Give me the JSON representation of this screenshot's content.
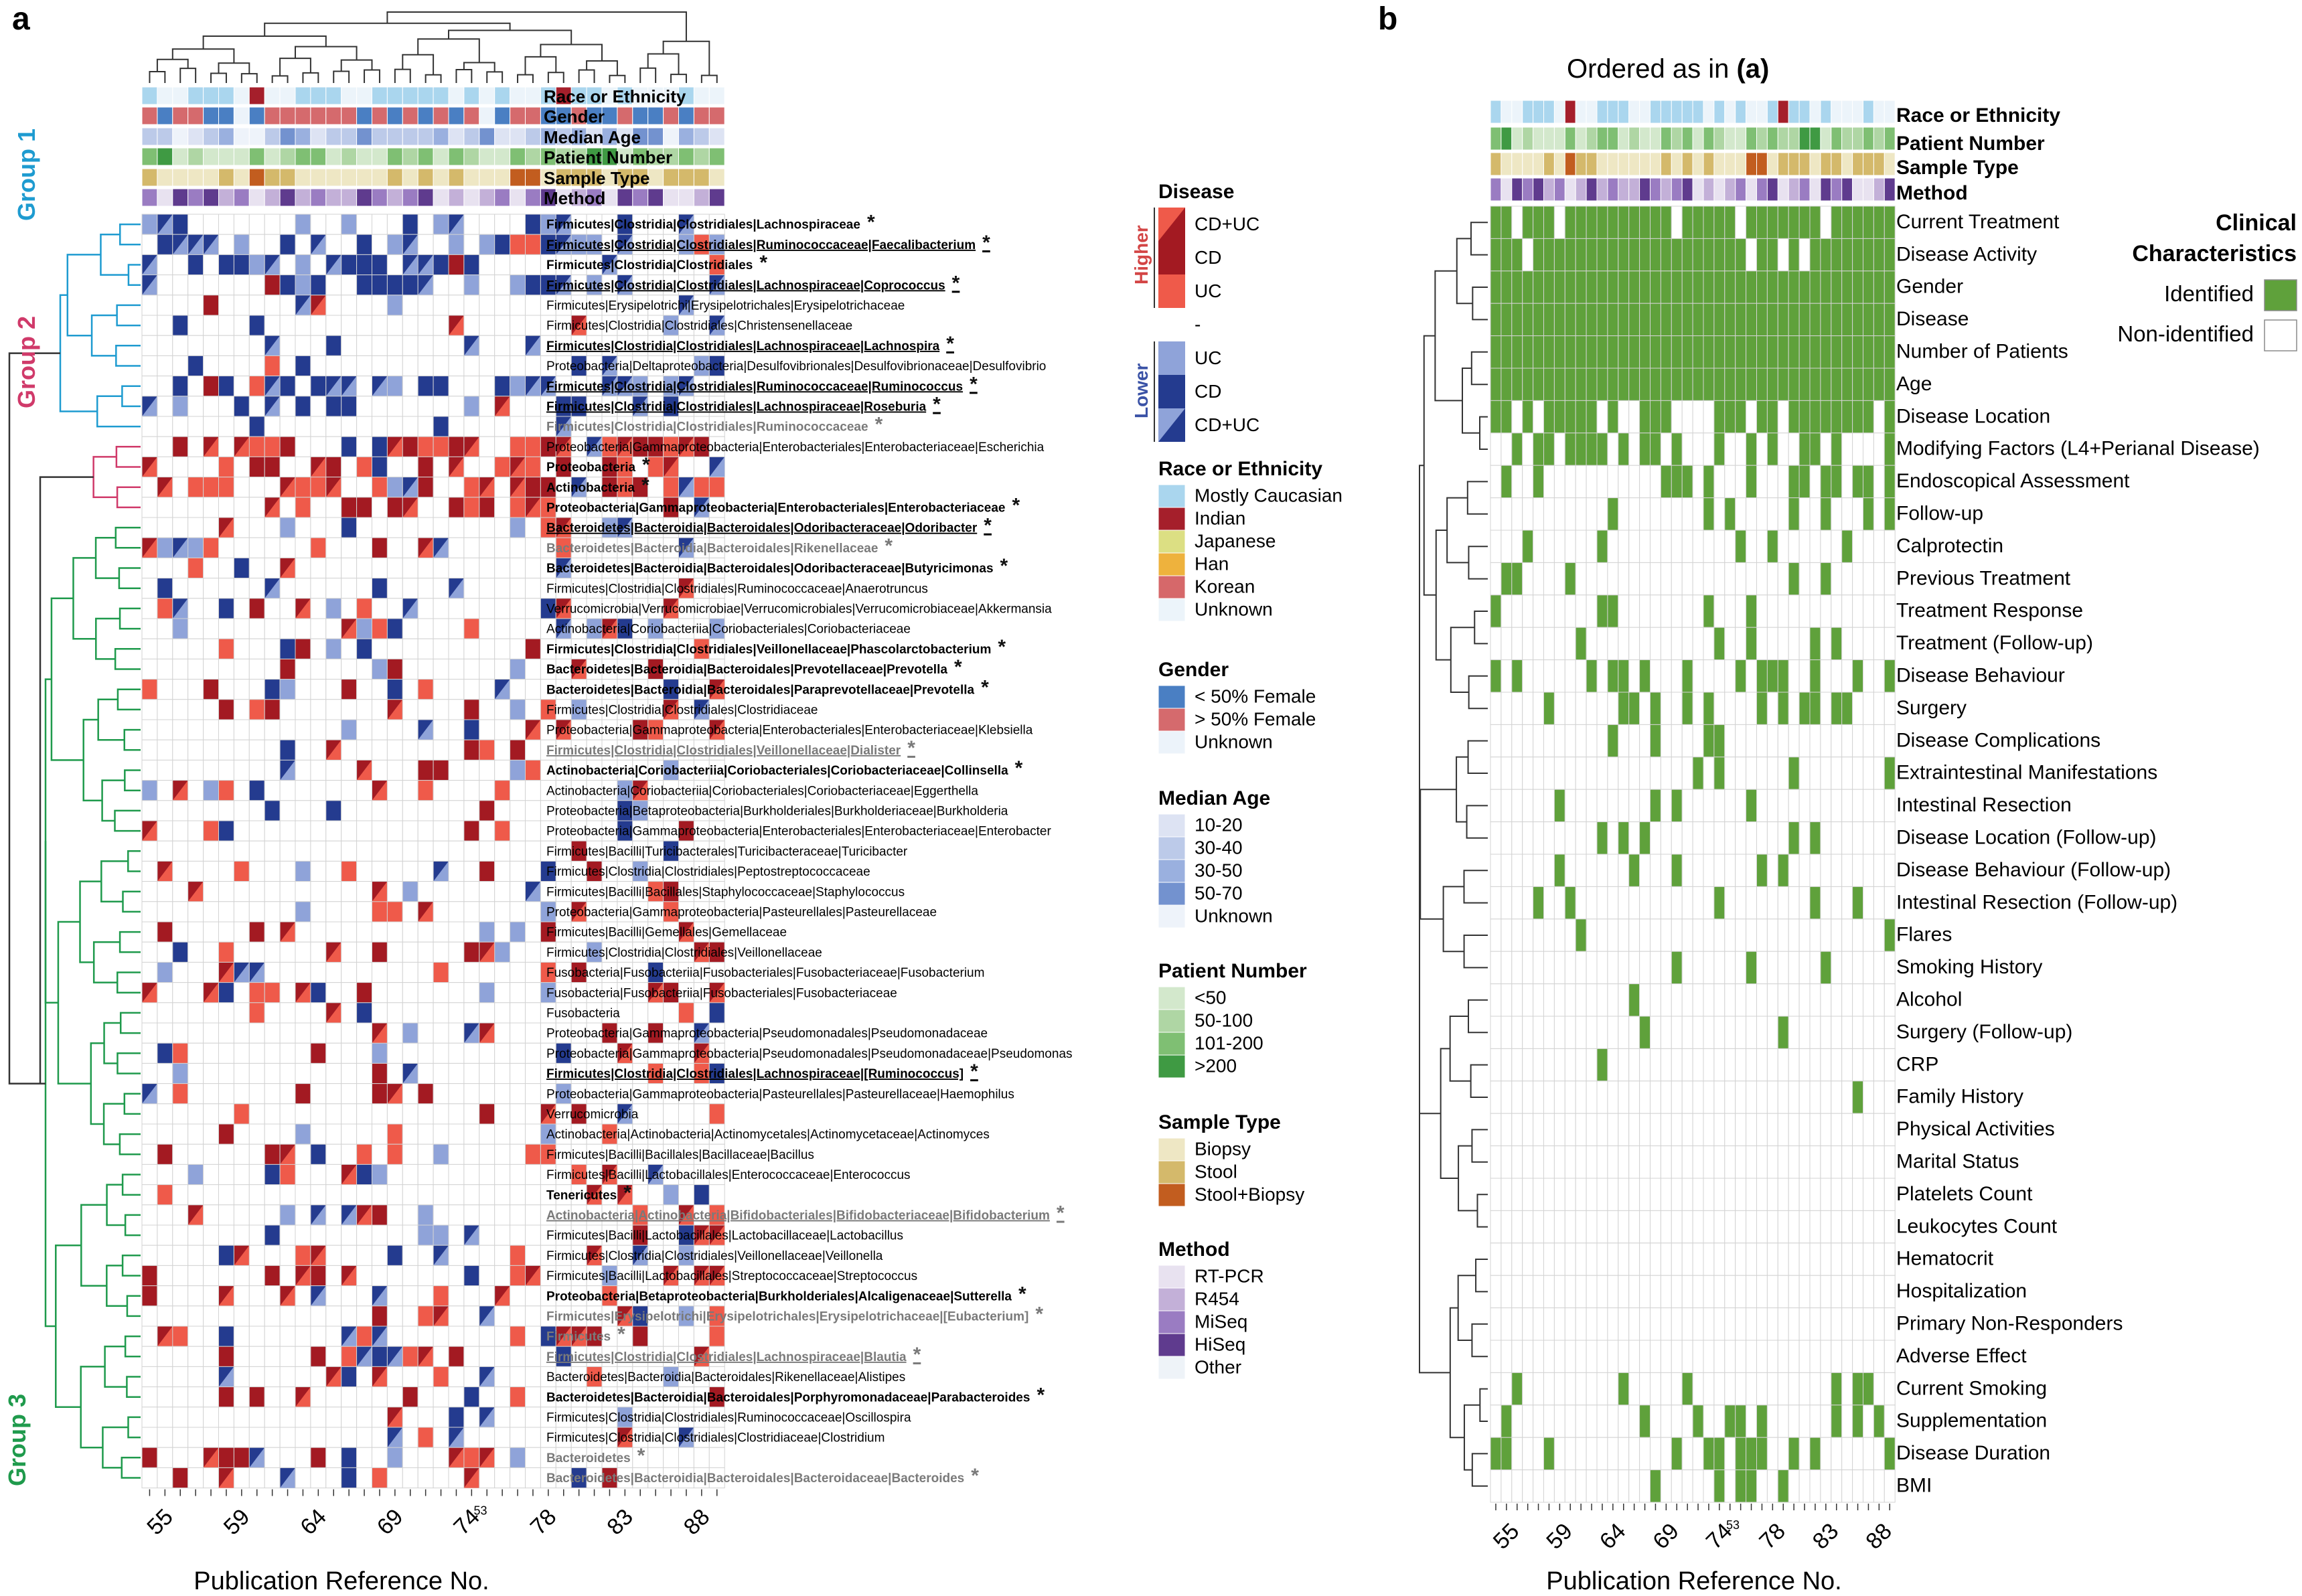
{
  "panel_a": {
    "letter": "a",
    "annotation_rows": [
      "Race or Ethnicity",
      "Gender",
      "Median Age",
      "Patient Number",
      "Sample Type",
      "Method"
    ],
    "group_labels": [
      "Group 1",
      "Group 2",
      "Group 3"
    ],
    "x_ticks": [
      "55",
      "59",
      "64",
      "69",
      "74",
      "78",
      "83",
      "88"
    ],
    "tick_superscript": "53",
    "x_label": "Publication Reference No.",
    "taxa": [
      {
        "name": "Firmicutes|Clostridia|Clostridiales|Lachnospiraceae",
        "style": "bold",
        "star": "*"
      },
      {
        "name": "Firmicutes|Clostridia|Clostridiales|Ruminococcaceae|Faecalibacterium",
        "style": "bold-underline",
        "star": "*"
      },
      {
        "name": "Firmicutes|Clostridia|Clostridiales",
        "style": "bold",
        "star": "*"
      },
      {
        "name": "Firmicutes|Clostridia|Clostridiales|Lachnospiraceae|Coprococcus",
        "style": "bold-underline",
        "star": "*"
      },
      {
        "name": "Firmicutes|Erysipelotrichi|Erysipelotrichales|Erysipelotrichaceae",
        "style": "normal",
        "star": ""
      },
      {
        "name": "Firmicutes|Clostridia|Clostridiales|Christensenellaceae",
        "style": "normal",
        "star": ""
      },
      {
        "name": "Firmicutes|Clostridia|Clostridiales|Lachnospiraceae|Lachnospira",
        "style": "bold-underline",
        "star": "*"
      },
      {
        "name": "Proteobacteria|Deltaproteobacteria|Desulfovibrionales|Desulfovibrionaceae|Desulfovibrio",
        "style": "normal",
        "star": ""
      },
      {
        "name": "Firmicutes|Clostridia|Clostridiales|Ruminococcaceae|Ruminococcus",
        "style": "bold-underline",
        "star": "*"
      },
      {
        "name": "Firmicutes|Clostridia|Clostridiales|Lachnospiraceae|Roseburia",
        "style": "bold-underline",
        "star": "*"
      },
      {
        "name": "Firmicutes|Clostridia|Clostridiales|Ruminococcaceae",
        "style": "gray",
        "star": "*"
      },
      {
        "name": "Proteobacteria|Gammaproteobacteria|Enterobacteriales|Enterobacteriaceae|Escherichia",
        "style": "normal",
        "star": ""
      },
      {
        "name": "Proteobacteria",
        "style": "bold",
        "star": "*"
      },
      {
        "name": "Actinobacteria",
        "style": "bold",
        "star": "*"
      },
      {
        "name": "Proteobacteria|Gammaproteobacteria|Enterobacteriales|Enterobacteriaceae",
        "style": "bold",
        "star": "*"
      },
      {
        "name": "Bacteroidetes|Bacteroidia|Bacteroidales|Odoribacteraceae|Odoribacter",
        "style": "bold-underline",
        "star": "*"
      },
      {
        "name": "Bacteroidetes|Bacteroidia|Bacteroidales|Rikenellaceae",
        "style": "gray",
        "star": "*"
      },
      {
        "name": "Bacteroidetes|Bacteroidia|Bacteroidales|Odoribacteraceae|Butyricimonas",
        "style": "bold",
        "star": "*"
      },
      {
        "name": "Firmicutes|Clostridia|Clostridiales|Ruminococcaceae|Anaerotruncus",
        "style": "normal",
        "star": ""
      },
      {
        "name": "Verrucomicrobia|Verrucomicrobiae|Verrucomicrobiales|Verrucomicrobiaceae|Akkermansia",
        "style": "normal",
        "star": ""
      },
      {
        "name": "Actinobacteria|Coriobacteriia|Coriobacteriales|Coriobacteriaceae",
        "style": "normal",
        "star": ""
      },
      {
        "name": "Firmicutes|Clostridia|Clostridiales|Veillonellaceae|Phascolarctobacterium",
        "style": "bold",
        "star": "*"
      },
      {
        "name": "Bacteroidetes|Bacteroidia|Bacteroidales|Prevotellaceae|Prevotella",
        "style": "bold",
        "star": "*"
      },
      {
        "name": "Bacteroidetes|Bacteroidia|Bacteroidales|Paraprevotellaceae|Prevotella",
        "style": "bold",
        "star": "*"
      },
      {
        "name": "Firmicutes|Clostridia|Clostridiales|Clostridiaceae",
        "style": "normal",
        "star": ""
      },
      {
        "name": "Proteobacteria|Gammaproteobacteria|Enterobacteriales|Enterobacteriaceae|Klebsiella",
        "style": "normal",
        "star": ""
      },
      {
        "name": "Firmicutes|Clostridia|Clostridiales|Veillonellaceae|Dialister",
        "style": "gray-underline",
        "star": "*"
      },
      {
        "name": "Actinobacteria|Coriobacteriia|Coriobacteriales|Coriobacteriaceae|Collinsella",
        "style": "bold",
        "star": "*"
      },
      {
        "name": "Actinobacteria|Coriobacteriia|Coriobacteriales|Coriobacteriaceae|Eggerthella",
        "style": "normal",
        "star": ""
      },
      {
        "name": "Proteobacteria|Betaproteobacteria|Burkholderiales|Burkholderiaceae|Burkholderia",
        "style": "normal",
        "star": ""
      },
      {
        "name": "Proteobacteria|Gammaproteobacteria|Enterobacteriales|Enterobacteriaceae|Enterobacter",
        "style": "normal",
        "star": ""
      },
      {
        "name": "Firmicutes|Bacilli|Turicibacterales|Turicibacteraceae|Turicibacter",
        "style": "normal",
        "star": ""
      },
      {
        "name": "Firmicutes|Clostridia|Clostridiales|Peptostreptococcaceae",
        "style": "normal",
        "star": ""
      },
      {
        "name": "Firmicutes|Bacilli|Bacillales|Staphylococcaceae|Staphylococcus",
        "style": "normal",
        "star": ""
      },
      {
        "name": "Proteobacteria|Gammaproteobacteria|Pasteurellales|Pasteurellaceae",
        "style": "normal",
        "star": ""
      },
      {
        "name": "Firmicutes|Bacilli|Gemellales|Gemellaceae",
        "style": "normal",
        "star": ""
      },
      {
        "name": "Firmicutes|Clostridia|Clostridiales|Veillonellaceae",
        "style": "normal",
        "star": ""
      },
      {
        "name": "Fusobacteria|Fusobacteriia|Fusobacteriales|Fusobacteriaceae|Fusobacterium",
        "style": "normal",
        "star": ""
      },
      {
        "name": "Fusobacteria|Fusobacteriia|Fusobacteriales|Fusobacteriaceae",
        "style": "normal",
        "star": ""
      },
      {
        "name": "Fusobacteria",
        "style": "normal",
        "star": ""
      },
      {
        "name": "Proteobacteria|Gammaproteobacteria|Pseudomonadales|Pseudomonadaceae",
        "style": "normal",
        "star": ""
      },
      {
        "name": "Proteobacteria|Gammaproteobacteria|Pseudomonadales|Pseudomonadaceae|Pseudomonas",
        "style": "normal",
        "star": ""
      },
      {
        "name": "Firmicutes|Clostridia|Clostridiales|Lachnospiraceae|[Ruminococcus]",
        "style": "bold-underline",
        "star": "*"
      },
      {
        "name": "Proteobacteria|Gammaproteobacteria|Pasteurellales|Pasteurellaceae|Haemophilus",
        "style": "normal",
        "star": ""
      },
      {
        "name": "Verrucomicrobia",
        "style": "normal",
        "star": ""
      },
      {
        "name": "Actinobacteria|Actinobacteria|Actinomycetales|Actinomycetaceae|Actinomyces",
        "style": "normal",
        "star": ""
      },
      {
        "name": "Firmicutes|Bacilli|Bacillales|Bacillaceae|Bacillus",
        "style": "normal",
        "star": ""
      },
      {
        "name": "Firmicutes|Bacilli|Lactobacillales|Enterococcaceae|Enterococcus",
        "style": "normal",
        "star": ""
      },
      {
        "name": "Tenericutes",
        "style": "bold",
        "star": "*"
      },
      {
        "name": "Actinobacteria|Actinobacteria|Bifidobacteriales|Bifidobacteriaceae|Bifidobacterium",
        "style": "gray-underline",
        "star": "*"
      },
      {
        "name": "Firmicutes|Bacilli|Lactobacillales|Lactobacillaceae|Lactobacillus",
        "style": "normal",
        "star": ""
      },
      {
        "name": "Firmicutes|Clostridia|Clostridiales|Veillonellaceae|Veillonella",
        "style": "normal",
        "star": ""
      },
      {
        "name": "Firmicutes|Bacilli|Lactobacillales|Streptococcaceae|Streptococcus",
        "style": "normal",
        "star": ""
      },
      {
        "name": "Proteobacteria|Betaproteobacteria|Burkholderiales|Alcaligenaceae|Sutterella",
        "style": "bold",
        "star": "*"
      },
      {
        "name": "Firmicutes|Erysipelotrichi|Erysipelotrichales|Erysipelotrichaceae|[Eubacterium]",
        "style": "gray",
        "star": "*"
      },
      {
        "name": "Firmicutes",
        "style": "gray",
        "star": "*"
      },
      {
        "name": "Firmicutes|Clostridia|Clostridiales|Lachnospiraceae|Blautia",
        "style": "gray-underline",
        "star": "*"
      },
      {
        "name": "Bacteroidetes|Bacteroidia|Bacteroidales|Rikenellaceae|Alistipes",
        "style": "normal",
        "star": ""
      },
      {
        "name": "Bacteroidetes|Bacteroidia|Bacteroidales|Porphyromonadaceae|Parabacteroides",
        "style": "bold",
        "star": "*"
      },
      {
        "name": "Firmicutes|Clostridia|Clostridiales|Ruminococcaceae|Oscillospira",
        "style": "normal",
        "star": ""
      },
      {
        "name": "Firmicutes|Clostridia|Clostridiales|Clostridiaceae|Clostridium",
        "style": "normal",
        "star": ""
      },
      {
        "name": "Bacteroidetes",
        "style": "gray",
        "star": "*"
      },
      {
        "name": "Bacteroidetes|Bacteroidia|Bacteroidales|Bacteroidaceae|Bacteroides",
        "style": "gray",
        "star": "*"
      }
    ],
    "legend": {
      "disease": {
        "title": "Disease",
        "higher_label": "Higher",
        "lower_label": "Lower",
        "items": [
          "CD+UC",
          "CD",
          "UC",
          "-",
          "UC",
          "CD",
          "CD+UC"
        ]
      },
      "race": {
        "title": "Race or Ethnicity",
        "items": [
          "Mostly Caucasian",
          "Indian",
          "Japanese",
          "Han",
          "Korean",
          "Unknown"
        ]
      },
      "gender": {
        "title": "Gender",
        "items": [
          "< 50% Female",
          "> 50% Female",
          "Unknown"
        ]
      },
      "age": {
        "title": "Median Age",
        "items": [
          "10-20",
          "30-40",
          "30-50",
          "50-70",
          "Unknown"
        ]
      },
      "patients": {
        "title": "Patient Number",
        "items": [
          "<50",
          "50-100",
          "101-200",
          ">200"
        ]
      },
      "sample": {
        "title": "Sample Type",
        "items": [
          "Biopsy",
          "Stool",
          "Stool+Biopsy"
        ]
      },
      "method": {
        "title": "Method",
        "items": [
          "RT-PCR",
          "R454",
          "MiSeq",
          "HiSeq",
          "Other"
        ]
      }
    }
  },
  "panel_b": {
    "letter": "b",
    "title_prefix": "Ordered as in ",
    "title_ref": "(a)",
    "annotation_rows": [
      "Race or Ethnicity",
      "Patient Number",
      "Sample Type",
      "Method"
    ],
    "legend": {
      "title_line1": "Clinical",
      "title_line2": "Characteristics",
      "identified": "Identified",
      "non_identified": "Non-identified"
    },
    "x_label": "Publication Reference No."
  },
  "chart_data": {
    "type": "heatmap",
    "n_studies": 38,
    "x_ticks": [
      "55",
      "59",
      "64",
      "69",
      "74",
      "78",
      "83",
      "88"
    ],
    "x_tick_note": "53",
    "xlabel": "Publication Reference No.",
    "colors": {
      "higher_ucd": "#e8483f",
      "higher_cd": "#a31a22",
      "higher_uc": "#ef5a4a",
      "lower_uc": "#8fa3d9",
      "lower_cd": "#243b8f",
      "lower_ucd": "#3550a8",
      "identified": "#5fa13b",
      "none": "#ffffff",
      "grid": "#d3d3d3",
      "race": [
        "#aad6ee",
        "#a51f2b",
        "#dcdf83",
        "#eeb23d",
        "#d6686a",
        "#ecf4fa"
      ],
      "gender": [
        "#4a7fc3",
        "#d56a6d",
        "#ecf3fa"
      ],
      "age": [
        "#dde3f3",
        "#bccae9",
        "#9ab0df",
        "#7392cf",
        "#eef3fa"
      ],
      "patients": [
        "#d3e8cc",
        "#afd6a4",
        "#7fbf73",
        "#3f9a43"
      ],
      "sample": [
        "#eee7c4",
        "#d4b96b",
        "#c25d1f"
      ],
      "method": [
        "#e8e2f0",
        "#c3b0d8",
        "#9a7cc2",
        "#5f3b8e",
        "#eef3f8"
      ]
    },
    "panel_b_characteristics": [
      "Current Treatment",
      "Disease Activity",
      "Gender",
      "Disease",
      "Number of Patients",
      "Age",
      "Disease Location",
      "Modifying Factors (L4+Perianal Disease)",
      "Endoscopical Assessment",
      "Follow-up",
      "Calprotectin",
      "Previous Treatment",
      "Treatment Response",
      "Treatment (Follow-up)",
      "Disease Behaviour",
      "Surgery",
      "Disease Complications",
      "Extraintestinal Manifestations",
      "Intestinal Resection",
      "Disease Location (Follow-up)",
      "Disease Behaviour (Follow-up)",
      "Intestinal Resection (Follow-up)",
      "Flares",
      "Smoking History",
      "Alcohol",
      "Surgery (Follow-up)",
      "CRP",
      "Family History",
      "Physical Activities",
      "Marital Status",
      "Platelets Count",
      "Leukocytes Count",
      "Hematocrit",
      "Hospitalization",
      "Primary Non-Responders",
      "Adverse Effect",
      "Current Smoking",
      "Supplementation",
      "Disease Duration",
      "BMI"
    ],
    "panel_b_counts": [
      33,
      34,
      38,
      38,
      38,
      38,
      26,
      18,
      14,
      7,
      5,
      5,
      5,
      5,
      14,
      12,
      4,
      4,
      4,
      5,
      5,
      5,
      2,
      3,
      1,
      2,
      1,
      1,
      0,
      0,
      0,
      0,
      0,
      0,
      0,
      0,
      6,
      9,
      12,
      5
    ],
    "panel_a_value_codes": {
      "0": "-",
      "1": "Higher UC",
      "2": "Higher CD",
      "3": "Higher CD+UC",
      "-1": "Lower UC",
      "-2": "Lower CD",
      "-3": "Lower CD+UC"
    }
  }
}
